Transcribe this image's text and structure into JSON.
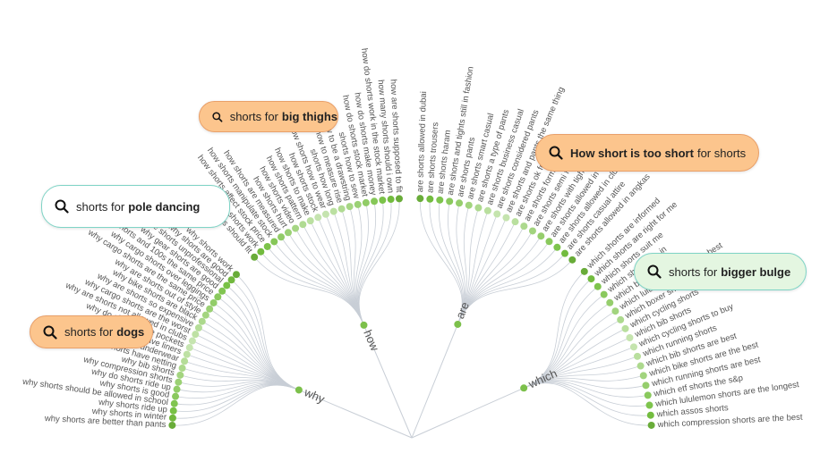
{
  "branches": [
    {
      "label": "why",
      "leaves": [
        "why shorts are better than pants",
        "why shorts in winter",
        "why shorts ride up",
        "why shorts should be allowed in school",
        "why shorts is good",
        "why do shorts ride up",
        "why compression shorts",
        "why bib shorts",
        "why shorts have netting",
        "why do shorts have underwear",
        "why do shorts have liners",
        "why do shorts have pockets",
        "why are shorts not allowed in clubs",
        "why cargo shorts are the worst",
        "why are shorts so expensive",
        "why bike shorts are black",
        "why are shorts out of style",
        "why cargo shorts are the same price",
        "why cargo shorts over leggings",
        "why shorts and 100s the same price",
        "why gear shorts are good",
        "why are shorts unprofessional",
        "why shorts are good",
        "why shorts work"
      ]
    },
    {
      "label": "how",
      "leaves": [
        "how shorts should fit",
        "how shorts work",
        "how shorts affect stock price",
        "how shorts manipulate stock",
        "how shorts are measured",
        "how shorts hurt",
        "how shorts video",
        "how shorts pattern",
        "how shorts to make",
        "how shorts stock",
        "how shorts how to wear",
        "shorts how long",
        "how to measure rise",
        "how to be a drawstring",
        "shorts how to sew",
        "how do shorts stock market",
        "how do shorts make money",
        "how do shorts work in the stock market",
        "how many shorts should i own",
        "how are shorts supposed to fit"
      ]
    },
    {
      "label": "are",
      "leaves": [
        "are shorts allowed in dubai",
        "are shorts trousers",
        "are shorts haram",
        "are shorts and tights still in fashion",
        "are shorts pants",
        "are shorts smart casual",
        "are shorts a type of pants",
        "are shorts business casual",
        "are shorts considered pants",
        "are shorts and pants the same thing",
        "are shorts ok for church",
        "are shorts formal",
        "are shorts semi formal",
        "are shorts with tights",
        "are shorts allowed in covid 19",
        "are shorts allowed in clubs",
        "are shorts casual attire",
        "are shorts allowed in angkas"
      ]
    },
    {
      "label": "which",
      "leaves": [
        "which shorts are informed",
        "which shorts are right for me",
        "which shorts suit me",
        "which shorts are in",
        "which black shorts",
        "which lululemon shorts are best",
        "which boxer shorts are best",
        "which cycling shorts",
        "which bib shorts",
        "which cycling shorts to buy",
        "which running shorts",
        "which bib shorts are best",
        "which bike shorts are the best",
        "which running shorts are best",
        "which etf shorts the s&p",
        "which lululemon shorts are the longest",
        "which assos shorts",
        "which compression shorts are the best"
      ]
    }
  ],
  "callouts": [
    {
      "prefix": "shorts for",
      "keyword": "big thighs"
    },
    {
      "prefix": "shorts for",
      "keyword": "pole dancing"
    },
    {
      "keyword": "How short is too short",
      "suffix": "for shorts"
    },
    {
      "prefix": "shorts for",
      "keyword": "bigger bulge"
    },
    {
      "prefix": "shorts for",
      "keyword": "dogs"
    }
  ]
}
